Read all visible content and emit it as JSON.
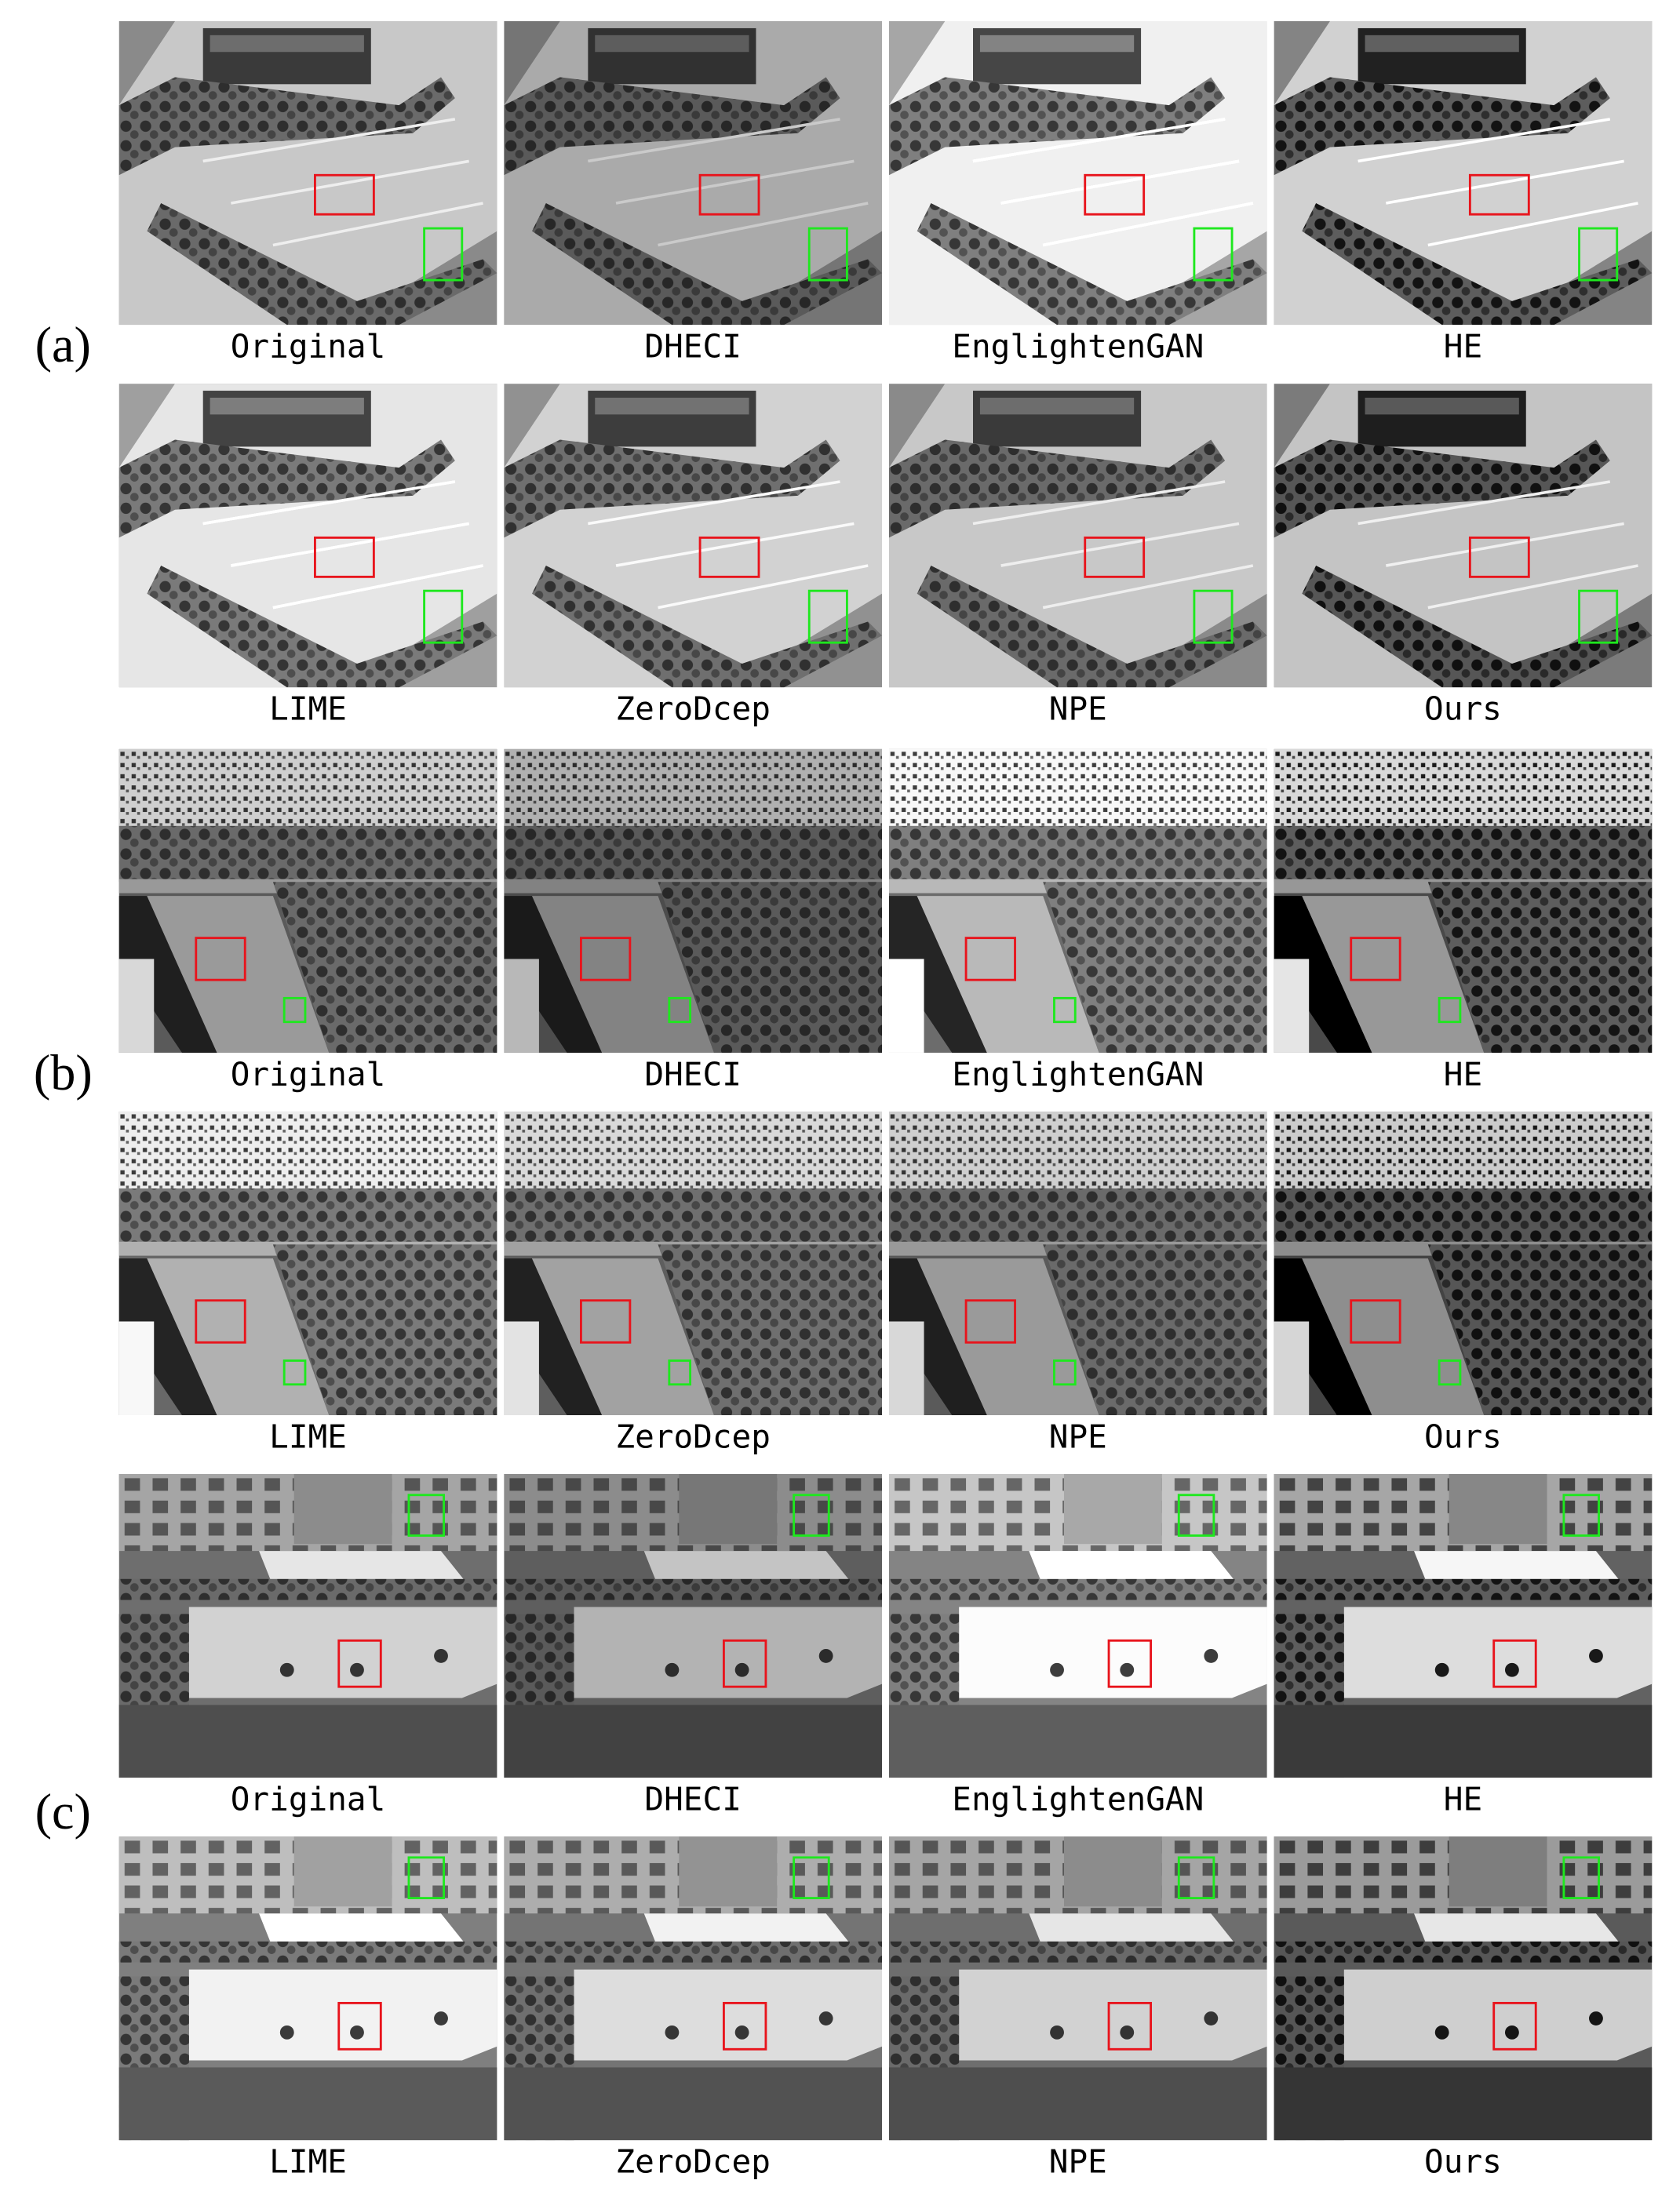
{
  "figure": {
    "groups": [
      {
        "label": "(a)",
        "rows": [
          [
            "Original",
            "DHECI",
            "EnglightenGAN",
            "HE"
          ],
          [
            "LIME",
            "ZeroDcep",
            "NPE",
            "Ours"
          ]
        ]
      },
      {
        "label": "(b)",
        "rows": [
          [
            "Original",
            "DHECI",
            "EnglightenGAN",
            "HE"
          ],
          [
            "LIME",
            "ZeroDcep",
            "NPE",
            "Ours"
          ]
        ]
      },
      {
        "label": "(c)",
        "rows": [
          [
            "Original",
            "DHECI",
            "EnglightenGAN",
            "HE"
          ],
          [
            "LIME",
            "ZeroDcep",
            "NPE",
            "Ours"
          ]
        ]
      }
    ]
  }
}
